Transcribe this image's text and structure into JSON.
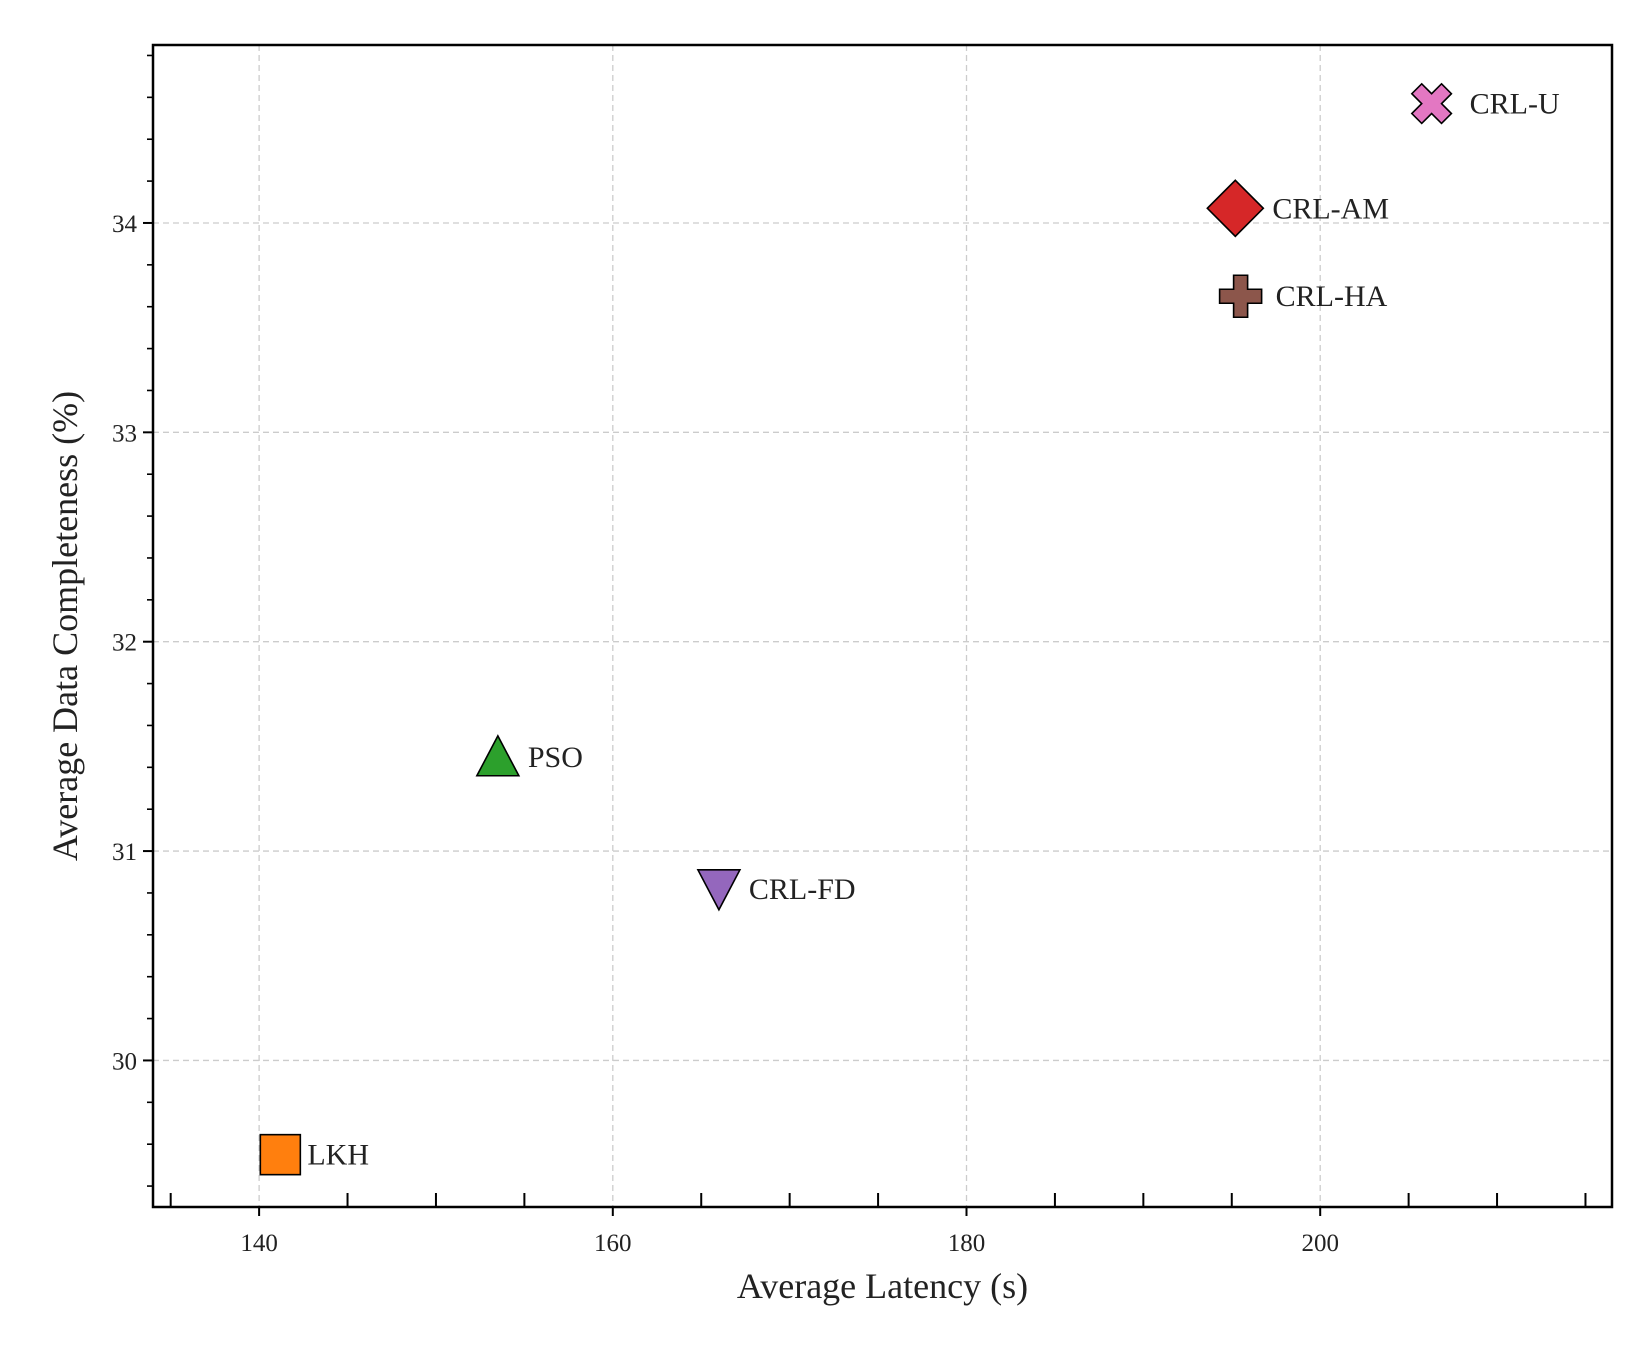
{
  "chart_data": {
    "type": "scatter",
    "title": "",
    "xlabel": "Average Latency (s)",
    "ylabel": "Average Data Completeness (%)",
    "xlim": [
      134,
      216.5
    ],
    "ylim": [
      29.3,
      34.85
    ],
    "x_ticks": [
      140,
      160,
      180,
      200
    ],
    "x_tick_labels": [
      "140",
      "160",
      "180",
      "200"
    ],
    "x_minor_step": 5,
    "y_ticks": [
      30,
      31,
      32,
      33,
      34
    ],
    "y_tick_labels": [
      "30",
      "31",
      "32",
      "33",
      "34"
    ],
    "y_minor_step": 0.2,
    "grid": true,
    "legend": "none",
    "points": [
      {
        "label": "LKH",
        "x": 141.2,
        "y": 29.55,
        "marker": "square",
        "color": "#ff7f0e"
      },
      {
        "label": "PSO",
        "x": 153.5,
        "y": 31.45,
        "marker": "triangle-up",
        "color": "#2ca02c"
      },
      {
        "label": "CRL-FD",
        "x": 166.0,
        "y": 30.82,
        "marker": "triangle-down",
        "color": "#9467bd"
      },
      {
        "label": "CRL-AM",
        "x": 195.2,
        "y": 34.07,
        "marker": "diamond",
        "color": "#d62728"
      },
      {
        "label": "CRL-HA",
        "x": 195.5,
        "y": 33.65,
        "marker": "plus",
        "color": "#8c564b"
      },
      {
        "label": "CRL-U",
        "x": 206.3,
        "y": 34.57,
        "marker": "x",
        "color": "#e377c2"
      }
    ]
  }
}
